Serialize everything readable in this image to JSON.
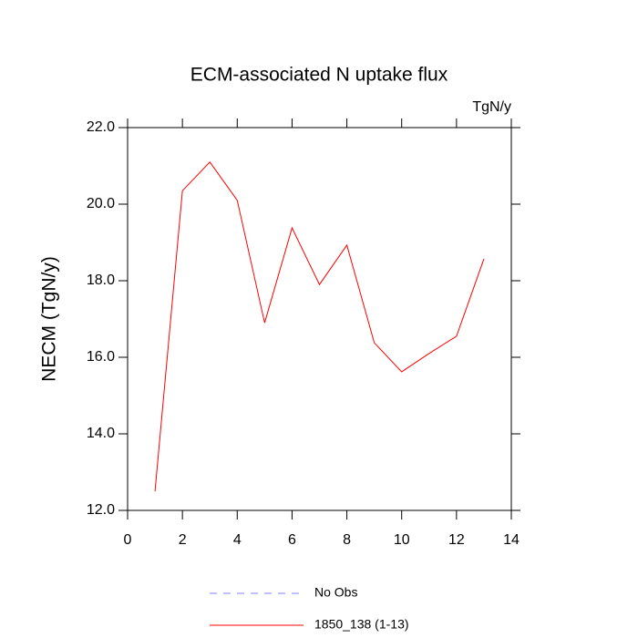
{
  "chart_data": {
    "type": "line",
    "title": "ECM-associated N uptake flux",
    "subtitle": "TgN/y",
    "y_label": "NECM  (TgN/y)",
    "x": [
      1,
      2,
      3,
      4,
      5,
      6,
      7,
      8,
      9,
      10,
      11,
      12,
      13
    ],
    "series": [
      {
        "name": "No Obs",
        "color": "#8080ff",
        "dashed": true,
        "values": [
          null,
          null,
          null,
          null,
          null,
          null,
          null,
          null,
          null,
          null,
          null,
          null,
          null
        ]
      },
      {
        "name": "1850_138 (1-13)",
        "color": "#ff0000",
        "dashed": false,
        "values": [
          12.5,
          20.35,
          21.1,
          20.1,
          16.9,
          19.38,
          17.9,
          18.93,
          16.38,
          15.62,
          16.1,
          16.55,
          18.57
        ]
      }
    ],
    "xlim": [
      0,
      14
    ],
    "xticks": [
      0,
      2,
      4,
      6,
      8,
      10,
      12,
      14
    ],
    "ylim": [
      12,
      22
    ],
    "yticks": [
      {
        "value": 12,
        "label": "12.0"
      },
      {
        "value": 14,
        "label": "14.0"
      },
      {
        "value": 16,
        "label": "16.0"
      },
      {
        "value": 18,
        "label": "18.0"
      },
      {
        "value": 20,
        "label": "20.0"
      },
      {
        "value": 22,
        "label": "22.0"
      }
    ],
    "grid": false
  }
}
